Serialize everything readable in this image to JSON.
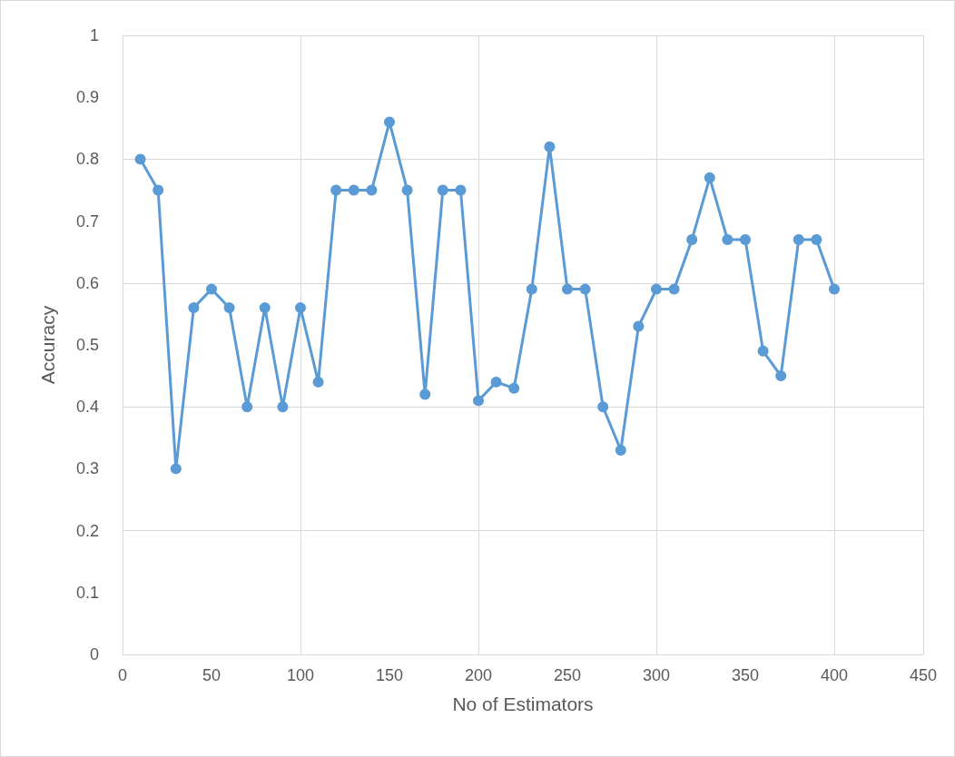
{
  "chart_data": {
    "type": "line",
    "xlabel": "No of Estimators",
    "ylabel": "Accuracy",
    "x": [
      10,
      20,
      30,
      40,
      50,
      60,
      70,
      80,
      90,
      100,
      110,
      120,
      130,
      140,
      150,
      160,
      170,
      180,
      190,
      200,
      210,
      220,
      230,
      240,
      250,
      260,
      270,
      280,
      290,
      300,
      310,
      320,
      330,
      340,
      350,
      360,
      370,
      380,
      390,
      400
    ],
    "series": [
      {
        "color": "#5b9bd5",
        "values": [
          0.8,
          0.75,
          0.3,
          0.56,
          0.59,
          0.56,
          0.4,
          0.56,
          0.4,
          0.56,
          0.44,
          0.75,
          0.75,
          0.75,
          0.86,
          0.75,
          0.42,
          0.75,
          0.75,
          0.41,
          0.44,
          0.43,
          0.59,
          0.82,
          0.59,
          0.59,
          0.4,
          0.33,
          0.53,
          0.59,
          0.59,
          0.67,
          0.77,
          0.67,
          0.67,
          0.49,
          0.45,
          0.67,
          0.67,
          0.59
        ]
      }
    ],
    "xlim": [
      0,
      450
    ],
    "xticks": [
      0,
      50,
      100,
      150,
      200,
      250,
      300,
      350,
      400,
      450
    ],
    "ylim": [
      0,
      1
    ],
    "yticks": [
      0,
      0.1,
      0.2,
      0.3,
      0.4,
      0.5,
      0.6,
      0.7,
      0.8,
      0.9,
      1
    ],
    "grid": true,
    "marker": "circle",
    "line_style": "solid"
  }
}
